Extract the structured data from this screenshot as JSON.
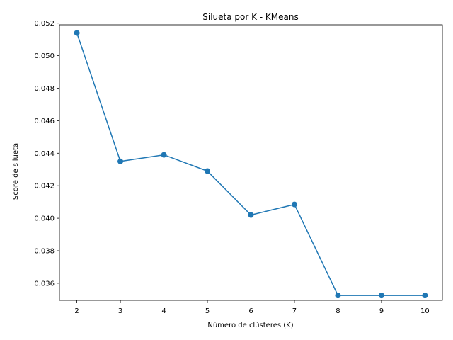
{
  "chart_data": {
    "type": "line",
    "title": "Silueta por K - KMeans",
    "xlabel": "Número de clústeres (K)",
    "ylabel": "Score de silueta",
    "x": [
      2,
      3,
      4,
      5,
      6,
      7,
      8,
      9,
      10
    ],
    "series": [
      {
        "values": [
          0.0514,
          0.0435,
          0.0439,
          0.0429,
          0.0402,
          0.04085,
          0.03525,
          0.03525,
          0.03525
        ],
        "color": "#1f77b4",
        "marker": "circle"
      }
    ],
    "xlim": [
      1.6,
      10.4
    ],
    "ylim": [
      0.03495,
      0.0519
    ],
    "xticks": [
      2,
      3,
      4,
      5,
      6,
      7,
      8,
      9,
      10
    ],
    "xtick_labels": [
      "2",
      "3",
      "4",
      "5",
      "6",
      "7",
      "8",
      "9",
      "10"
    ],
    "yticks": [
      0.036,
      0.038,
      0.04,
      0.042,
      0.044,
      0.046,
      0.048,
      0.05,
      0.052
    ],
    "ytick_labels": [
      "0.036",
      "0.038",
      "0.040",
      "0.042",
      "0.044",
      "0.046",
      "0.048",
      "0.050",
      "0.052"
    ],
    "grid": false,
    "legend": "none"
  }
}
